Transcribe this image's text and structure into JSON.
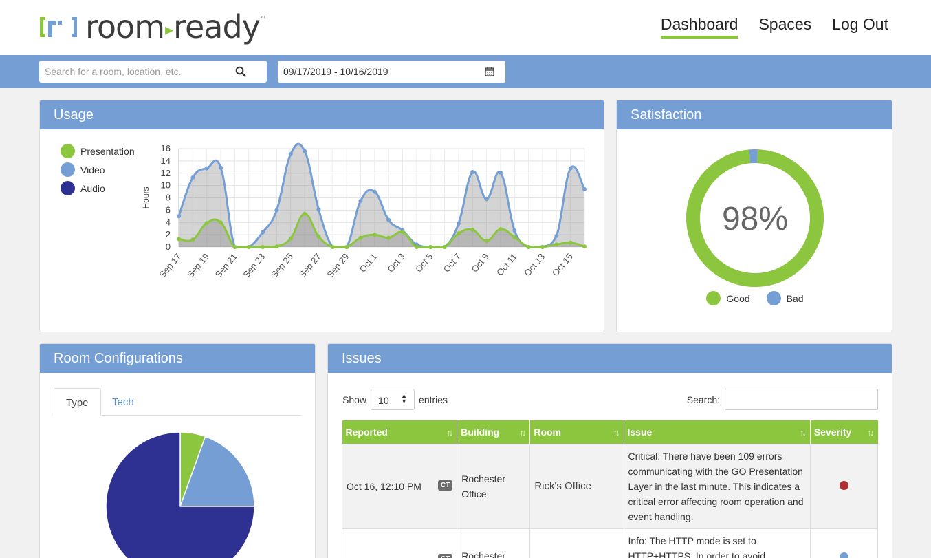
{
  "brand": {
    "name_left": "room",
    "name_right": "ready",
    "trademark": "™"
  },
  "nav": {
    "items": [
      {
        "label": "Dashboard",
        "active": true
      },
      {
        "label": "Spaces",
        "active": false
      },
      {
        "label": "Log Out",
        "active": false
      }
    ]
  },
  "filters": {
    "search_placeholder": "Search for a room, location, etc.",
    "date_range": "09/17/2019 - 10/16/2019"
  },
  "usage": {
    "title": "Usage",
    "legend": [
      {
        "name": "Presentation",
        "color": "#8cc63f"
      },
      {
        "name": "Video",
        "color": "#749ed4"
      },
      {
        "name": "Audio",
        "color": "#2e3192"
      }
    ],
    "chart_data": {
      "type": "area",
      "title": "",
      "ylabel": "Hours",
      "ylim": [
        0,
        16
      ],
      "yticks": [
        0,
        2,
        4,
        6,
        8,
        10,
        12,
        14,
        16
      ],
      "x": [
        "Sep 17",
        "Sep 18",
        "Sep 19",
        "Sep 20",
        "Sep 21",
        "Sep 22",
        "Sep 23",
        "Sep 24",
        "Sep 25",
        "Sep 26",
        "Sep 27",
        "Sep 28",
        "Sep 29",
        "Sep 30",
        "Oct 1",
        "Oct 2",
        "Oct 3",
        "Oct 4",
        "Oct 5",
        "Oct 6",
        "Oct 7",
        "Oct 8",
        "Oct 9",
        "Oct 10",
        "Oct 11",
        "Oct 12",
        "Oct 13",
        "Oct 14",
        "Oct 15",
        "Oct 16"
      ],
      "xtick_labels": [
        "Sep 17",
        "Sep 19",
        "Sep 21",
        "Sep 23",
        "Sep 25",
        "Sep 27",
        "Sep 29",
        "Oct 1",
        "Oct 3",
        "Oct 5",
        "Oct 7",
        "Oct 9",
        "Oct 11",
        "Oct 13",
        "Oct 15"
      ],
      "series": [
        {
          "name": "Video",
          "color": "#749ed4",
          "values": [
            5,
            11.3,
            12.8,
            12.9,
            0,
            0,
            2.4,
            6,
            15.1,
            15.6,
            6.1,
            0,
            0,
            7.5,
            9,
            4.4,
            2.7,
            0.4,
            0,
            0,
            3.8,
            12.2,
            7.8,
            12.1,
            2.7,
            0,
            0,
            1.8,
            12.8,
            9.4
          ]
        },
        {
          "name": "Presentation",
          "color": "#8cc63f",
          "values": [
            1.3,
            1.2,
            3.9,
            4,
            0,
            0,
            0,
            0.1,
            1.4,
            5.4,
            1.7,
            0,
            0,
            1.5,
            2,
            1.5,
            2.4,
            0,
            0,
            0,
            2.2,
            2.8,
            1,
            2.9,
            1.6,
            0,
            0,
            0.4,
            0.7,
            0.1
          ]
        }
      ],
      "grid": true,
      "legend_position": "left"
    }
  },
  "satisfaction": {
    "title": "Satisfaction",
    "center_label": "98%",
    "chart_data": {
      "type": "pie",
      "categories": [
        "Good",
        "Bad"
      ],
      "values": [
        98,
        2
      ],
      "colors": [
        "#8cc63f",
        "#749ed4"
      ],
      "legend_position": "bottom"
    },
    "legend": [
      {
        "name": "Good",
        "color": "#8cc63f"
      },
      {
        "name": "Bad",
        "color": "#749ed4"
      }
    ]
  },
  "room_configurations": {
    "title": "Room Configurations",
    "tabs": [
      {
        "label": "Type",
        "active": true
      },
      {
        "label": "Tech",
        "active": false
      }
    ],
    "chart_data": {
      "type": "pie",
      "values": [
        5.5,
        19.5,
        75
      ],
      "colors": [
        "#8cc63f",
        "#749ed4",
        "#2e3192"
      ]
    }
  },
  "issues": {
    "title": "Issues",
    "show_label": "Show",
    "entries_value": "10",
    "entries_label": "entries",
    "search_label": "Search:",
    "search_value": "",
    "columns": [
      "Reported",
      "Building",
      "Room",
      "Issue",
      "Severity"
    ],
    "rows": [
      {
        "reported": "Oct 16, 12:10 PM",
        "tz": "CT",
        "building": "Rochester Office",
        "room": "Rick's Office",
        "issue": "Critical: There have been 109 errors communicating with the GO Presentation Layer in the last minute. This indicates a critical error affecting room operation and event handling.",
        "severity_color": "#b03030"
      },
      {
        "reported": "",
        "tz": "CT",
        "building": "Rochester",
        "room": "",
        "issue": "Info: The HTTP mode is set to HTTP+HTTPS. In order to avoid",
        "severity_color": "#749ed4"
      }
    ]
  }
}
